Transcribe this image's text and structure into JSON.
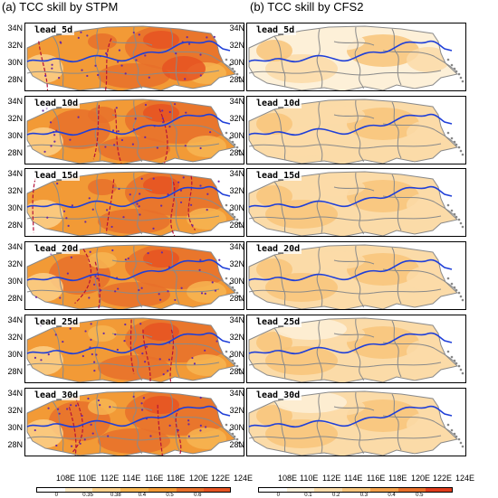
{
  "titles": {
    "left": "(a) TCC skill by STPM",
    "right": "(b) TCC skill by CFS2"
  },
  "leads": [
    "lead_5d",
    "lead_10d",
    "lead_15d",
    "lead_20d",
    "lead_25d",
    "lead_30d"
  ],
  "lat_labels": [
    "34N",
    "32N",
    "30N",
    "28N"
  ],
  "lon_labels": [
    "108E",
    "110E",
    "112E",
    "114E",
    "116E",
    "118E",
    "120E",
    "122E",
    "124E"
  ],
  "colorbar_left": {
    "ticks": [
      "0",
      "0.35",
      "0.38",
      "0.4",
      "0.5",
      "0.6"
    ],
    "colors": [
      "#ffffff",
      "#fde8c2",
      "#fbd08a",
      "#f7b552",
      "#f29a36",
      "#e8702a",
      "#e65422"
    ]
  },
  "colorbar_right": {
    "ticks": [
      "0",
      "0.1",
      "0.2",
      "0.3",
      "0.4",
      "0.5"
    ],
    "colors": [
      "#ffffff",
      "#fdf0d8",
      "#fbdba8",
      "#f8c47a",
      "#f2a04a",
      "#e8702a",
      "#e03c1c"
    ]
  },
  "colors": {
    "river": "#1f3fd8",
    "border": "#8a8a8a",
    "contour": "#b4123a",
    "station": "#6a2aa0"
  }
}
